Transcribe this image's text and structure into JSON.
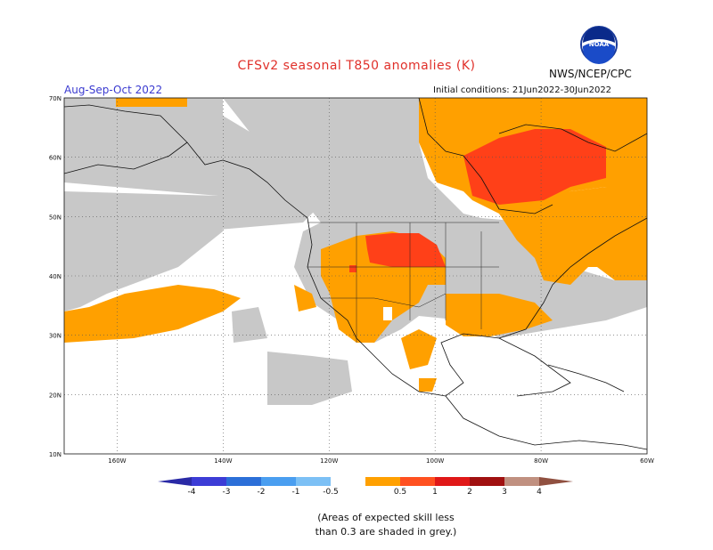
{
  "header": {
    "title": "CFSv2 seasonal T850 anomalies (K)",
    "season": "Aug-Sep-Oct 2022",
    "initial_conditions": "Initial conditions: 21Jun2022-30Jun2022",
    "agency": "NWS/NCEP/CPC",
    "logo_text": "NOAA"
  },
  "map": {
    "lat_labels": [
      "70N",
      "60N",
      "50N",
      "40N",
      "30N",
      "20N",
      "10N"
    ],
    "lon_labels": [
      "160W",
      "140W",
      "120W",
      "100W",
      "80W",
      "60W"
    ],
    "lon_range": [
      -170,
      -60
    ],
    "lat_range": [
      10,
      70
    ]
  },
  "colorbar": {
    "labels": [
      "-4",
      "-3",
      "-2",
      "-1",
      "-0.5",
      "0.5",
      "1",
      "2",
      "3",
      "4"
    ],
    "colors": [
      "#2a2aa6",
      "#3c3cd6",
      "#2c6fd8",
      "#4a9ef0",
      "#7cc0f5",
      "#ffffff",
      "#ffa000",
      "#ff5020",
      "#e01818",
      "#a01010",
      "#c09080",
      "#905040"
    ]
  },
  "colors": {
    "grey_noskill": "#c8c8c8",
    "orange": "#ffa000",
    "red": "#ff4018",
    "title": "#e0302a",
    "season": "#3a3ad0"
  },
  "footnote": {
    "line1": "(Areas of expected skill less",
    "line2": "than 0.3 are shaded in grey.)"
  }
}
